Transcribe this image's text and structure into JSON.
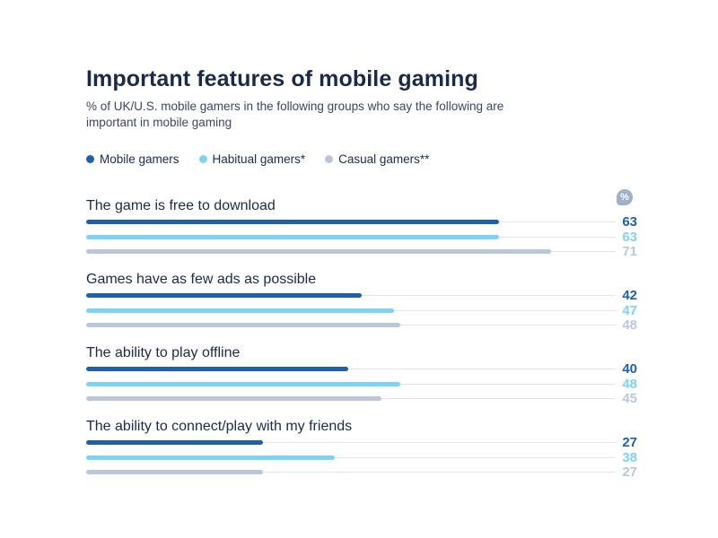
{
  "chart_data": {
    "type": "bar",
    "orientation": "horizontal",
    "title": "Important features of mobile gaming",
    "subtitle": "% of UK/U.S. mobile gamers in the following groups who say the following are important in mobile gaming",
    "unit_badge": "%",
    "legend_placement": "top-left",
    "xlim": [
      0,
      100
    ],
    "categories": [
      "The game is free to download",
      "Games have as few ads as possible",
      "The ability to play offline",
      "The ability to connect/play with my friends"
    ],
    "series": [
      {
        "name": "Mobile gamers",
        "color": "#1f5fad",
        "values": [
          63,
          42,
          40,
          27
        ]
      },
      {
        "name": "Habitual gamers*",
        "color": "#7dd3f7",
        "values": [
          63,
          47,
          48,
          38
        ]
      },
      {
        "name": "Casual gamers**",
        "color": "#bac7db",
        "values": [
          71,
          48,
          45,
          27
        ]
      }
    ]
  }
}
